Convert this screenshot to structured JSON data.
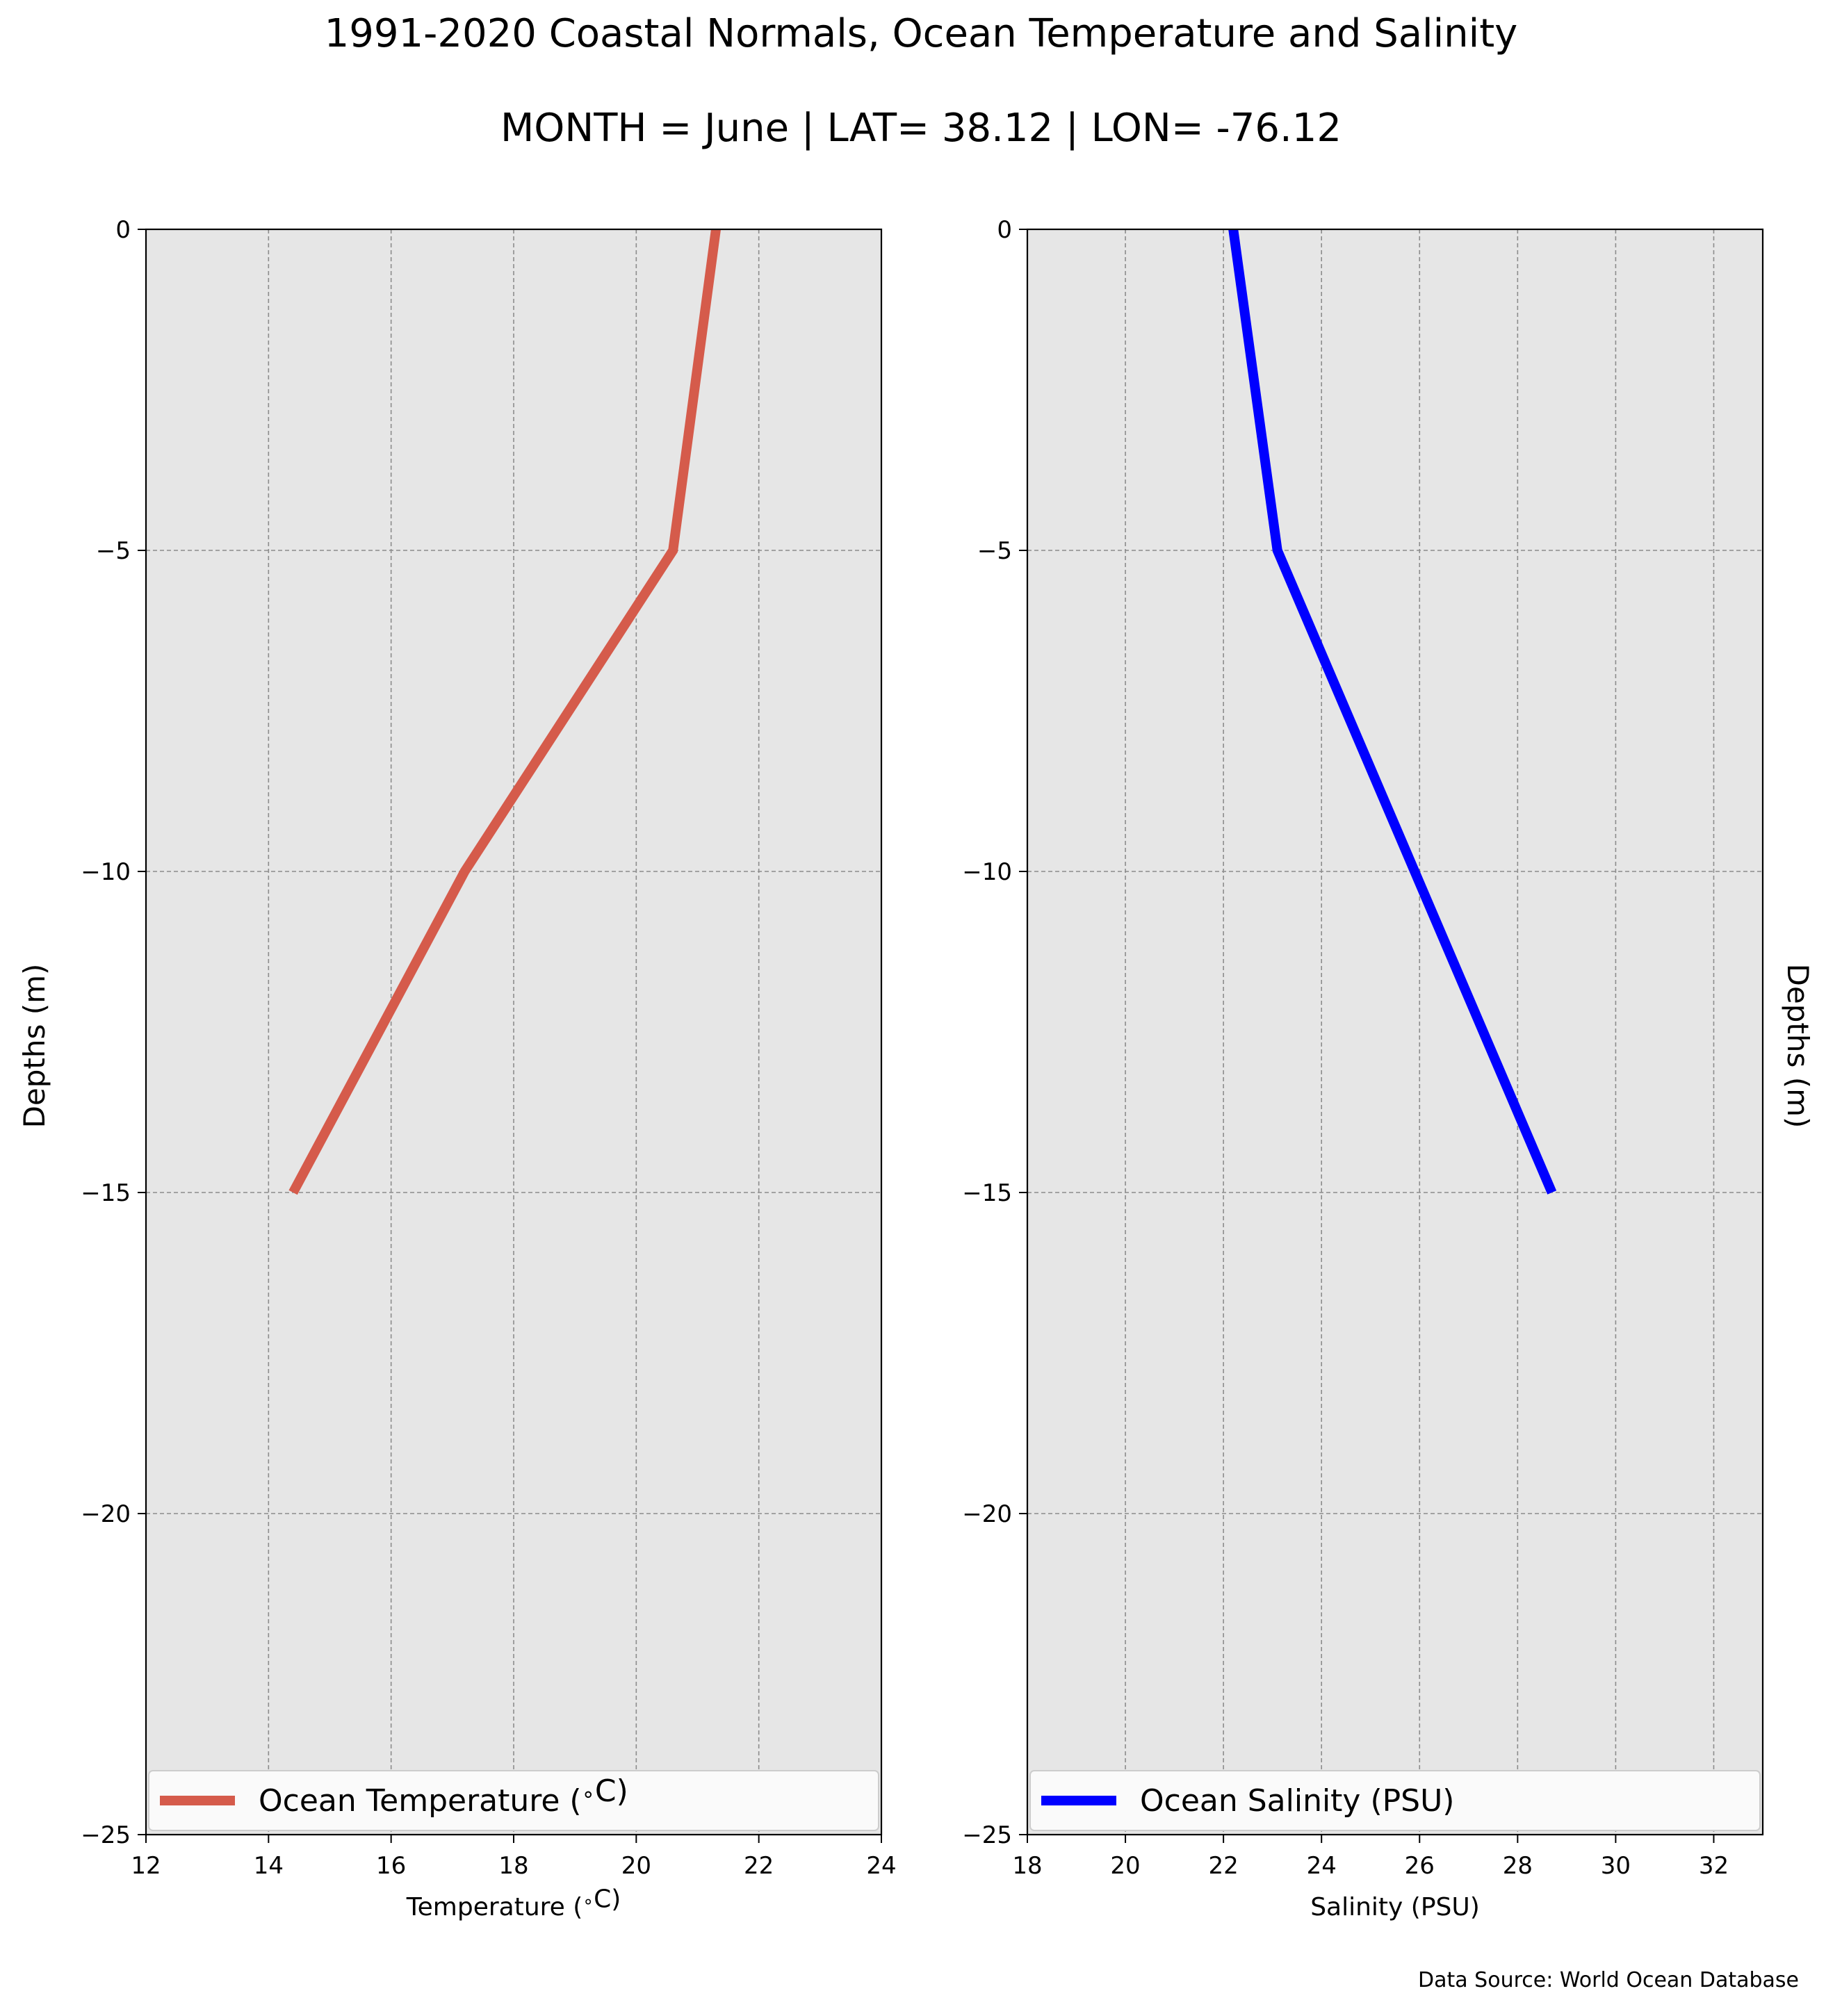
{
  "figure": {
    "title": "1991-2020 Coastal Normals, Ocean Temperature and Salinity",
    "subtitle": "MONTH = June | LAT= 38.12 | LON= -76.12",
    "source_note": "Data Source: World Ocean Database"
  },
  "colors": {
    "background": "#ffffff",
    "axes_face": "#e6e6e6",
    "grid": "#8c8c8c",
    "temperature_line": "#d55b4b",
    "salinity_line": "#0000ff"
  },
  "chart_data": [
    {
      "type": "line",
      "orientation": "vertical-profile",
      "xlabel": "Temperature ($^\\circ$C)",
      "ylabel": "Depths (m)",
      "ylabel_side": "left",
      "xlim": [
        12,
        24
      ],
      "ylim": [
        -25,
        0
      ],
      "xticks": [
        12,
        14,
        16,
        18,
        20,
        22,
        24
      ],
      "xtick_labels": [
        "12",
        "14",
        "16",
        "18",
        "20",
        "22",
        "24"
      ],
      "yticks": [
        0,
        -5,
        -10,
        -15,
        -20,
        -25
      ],
      "ytick_labels": [
        "0",
        "−5",
        "−10",
        "−15",
        "−20",
        "−25"
      ],
      "grid": true,
      "legend_position": "bottom",
      "series": [
        {
          "name": "Ocean Temperature ($^\\circ$C)",
          "color": "#d55b4b",
          "x": [
            21.3,
            20.6,
            17.2,
            14.4
          ],
          "y": [
            0,
            -5,
            -10,
            -15
          ]
        }
      ]
    },
    {
      "type": "line",
      "orientation": "vertical-profile",
      "xlabel": "Salinity (PSU)",
      "ylabel": "Depths (m)",
      "ylabel_side": "right",
      "xlim": [
        18,
        33
      ],
      "ylim": [
        -25,
        0
      ],
      "xticks": [
        18,
        20,
        22,
        24,
        26,
        28,
        30,
        32
      ],
      "xtick_labels": [
        "18",
        "20",
        "22",
        "24",
        "26",
        "28",
        "30",
        "32"
      ],
      "yticks": [
        0,
        -5,
        -10,
        -15,
        -20,
        -25
      ],
      "ytick_labels": [
        "0",
        "−5",
        "−10",
        "−15",
        "−20",
        "−25"
      ],
      "grid": true,
      "legend_position": "bottom",
      "series": [
        {
          "name": "Ocean Salinity (PSU)",
          "color": "#0000ff",
          "x": [
            22.2,
            23.1,
            25.9,
            28.7
          ],
          "y": [
            0,
            -5,
            -10,
            -15
          ]
        }
      ]
    }
  ]
}
